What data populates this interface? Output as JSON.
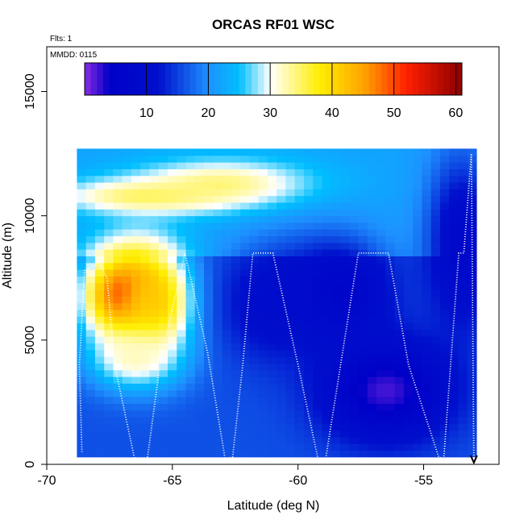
{
  "chart_data": {
    "type": "heatmap",
    "title": "ORCAS RF01 WSC",
    "xlabel": "Latitude (deg N)",
    "ylabel": "Altitude (m)",
    "xlim": [
      -70,
      -52
    ],
    "ylim": [
      0,
      16800
    ],
    "x_ticks": [
      -70,
      -65,
      -60,
      -55
    ],
    "x_tick_labels": [
      "-70",
      "-65",
      "-60",
      "-55"
    ],
    "y_ticks": [
      0,
      5000,
      10000,
      15000
    ],
    "y_tick_labels": [
      "0",
      "5000",
      "10000",
      "15000"
    ],
    "notes": [
      "Flts: 1",
      "MMDD: 0115"
    ],
    "colorbar": {
      "range": [
        0,
        61
      ],
      "ticks": [
        10,
        20,
        30,
        40,
        50,
        60
      ],
      "tick_labels": [
        "10",
        "20",
        "30",
        "40",
        "50",
        "60"
      ],
      "stops": [
        {
          "v": 0,
          "color": "#8a2be2"
        },
        {
          "v": 4,
          "color": "#0000c8"
        },
        {
          "v": 12,
          "color": "#0010cc"
        },
        {
          "v": 20,
          "color": "#1e90ff"
        },
        {
          "v": 25,
          "color": "#00bfff"
        },
        {
          "v": 30,
          "color": "#ffffff"
        },
        {
          "v": 38,
          "color": "#ffee00"
        },
        {
          "v": 45,
          "color": "#ffa500"
        },
        {
          "v": 52,
          "color": "#ff2000"
        },
        {
          "v": 61,
          "color": "#8b0000"
        }
      ]
    },
    "field_extent": {
      "lat": [
        -68.8,
        -52.9
      ],
      "alt": [
        300,
        12700
      ]
    },
    "wind_speed_features": [
      {
        "lat": -66.8,
        "alt": 6800,
        "value": 55,
        "sx": 1.2,
        "sy": 1300
      },
      {
        "lat": -65.8,
        "alt": 6500,
        "value": 42,
        "sx": 1.1,
        "sy": 1500
      },
      {
        "lat": -66.5,
        "alt": 4300,
        "value": 32,
        "sx": 1.3,
        "sy": 900
      },
      {
        "lat": -63.0,
        "alt": 11300,
        "value": 34,
        "sx": 2.5,
        "sy": 700
      },
      {
        "lat": -66.0,
        "alt": 10800,
        "value": 35,
        "sx": 2.5,
        "sy": 500
      },
      {
        "lat": -56.5,
        "alt": 3000,
        "value": 2,
        "sx": 1.8,
        "sy": 1400
      },
      {
        "lat": -58.5,
        "alt": 7000,
        "value": 6,
        "sx": 1.5,
        "sy": 1500
      },
      {
        "lat": -61.0,
        "alt": 6500,
        "value": 10,
        "sx": 1.5,
        "sy": 1600
      },
      {
        "lat": -53.5,
        "alt": 9000,
        "value": 8,
        "sx": 1.0,
        "sy": 2500
      }
    ],
    "flight_track": {
      "lat": [
        -68.6,
        -68.7,
        -68.5,
        -67.9,
        -67.6,
        -67.3,
        -66.5,
        -66.0,
        -65.5,
        -64.5,
        -63.6,
        -62.9,
        -62.6,
        -62.2,
        -61.8,
        -61.0,
        -60.0,
        -59.2,
        -58.9,
        -57.6,
        -56.4,
        -55.6,
        -54.4,
        -54.2,
        -53.6,
        -53.4,
        -53.1,
        -53.0
      ],
      "alt": [
        500,
        4000,
        7800,
        8100,
        7500,
        4000,
        200,
        200,
        4000,
        8500,
        4500,
        200,
        300,
        4000,
        8500,
        8500,
        4000,
        200,
        200,
        8500,
        8500,
        4000,
        300,
        200,
        8500,
        8500,
        12500,
        100
      ]
    }
  }
}
